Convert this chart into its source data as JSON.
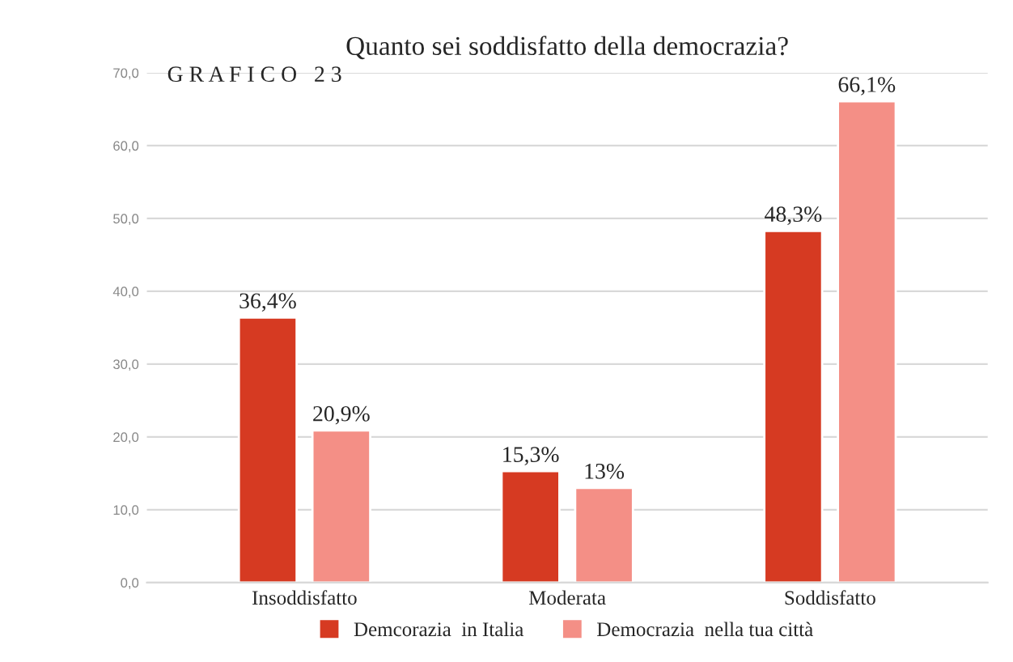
{
  "chart_data": {
    "type": "bar",
    "title": "Quanto sei soddisfatto della democrazia?",
    "annotations": [
      "G R A F I C O   2 3"
    ],
    "categories": [
      "Insoddisfatto",
      "Moderata",
      "Soddisfatto"
    ],
    "series": [
      {
        "name": "Demcorazia  in Italia",
        "color": "#d63a22",
        "values": [
          36.4,
          15.3,
          48.3
        ],
        "value_labels": [
          "36,4%",
          "15,3%",
          "48,3%"
        ]
      },
      {
        "name": "Democrazia  nella tua città",
        "color": "#f48f86",
        "values": [
          20.9,
          13,
          66.1
        ],
        "value_labels": [
          "20,9%",
          "13%",
          "66,1%"
        ]
      }
    ],
    "ylim": [
      0,
      70
    ],
    "yticks": [
      {
        "value": 0,
        "label": "0,0"
      },
      {
        "value": 10,
        "label": "10,0"
      },
      {
        "value": 20,
        "label": "20,0"
      },
      {
        "value": 30,
        "label": "30,0"
      },
      {
        "value": 40,
        "label": "40,0"
      },
      {
        "value": 50,
        "label": "50,0"
      },
      {
        "value": 60,
        "label": "60,0"
      },
      {
        "value": 70,
        "label": "70,0"
      }
    ],
    "grid": "y",
    "legend": "bottom"
  }
}
